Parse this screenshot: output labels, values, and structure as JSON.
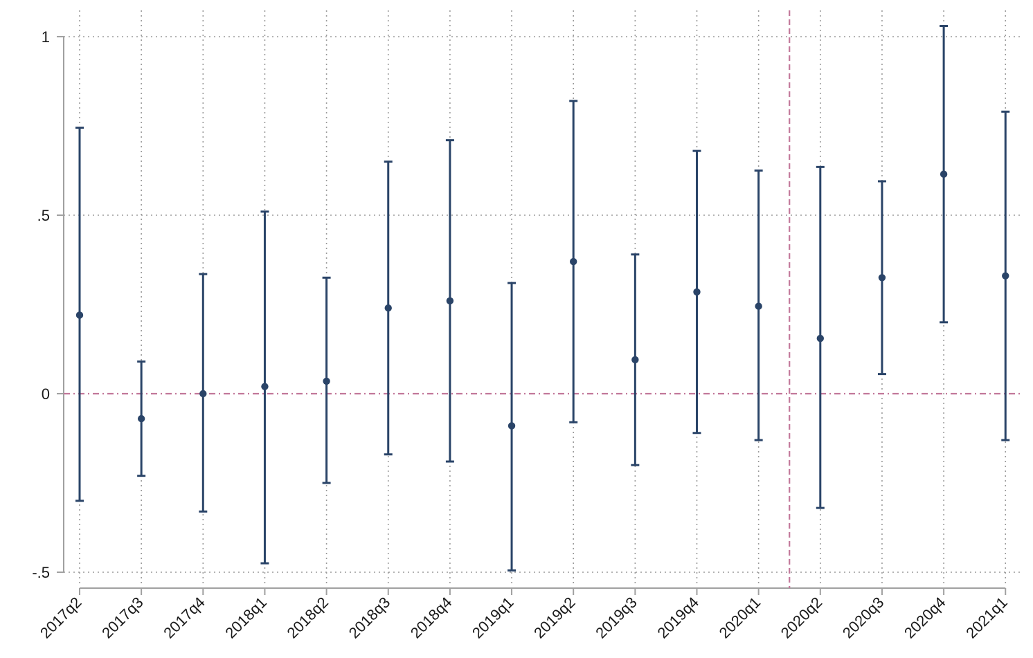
{
  "chart_data": {
    "type": "scatter",
    "title": "",
    "xlabel": "",
    "ylabel": "",
    "categories": [
      "2017q2",
      "2017q3",
      "2017q4",
      "2018q1",
      "2018q2",
      "2018q3",
      "2018q4",
      "2019q1",
      "2019q2",
      "2019q3",
      "2019q4",
      "2020q1",
      "2020q2",
      "2020q3",
      "2020q4",
      "2021q1"
    ],
    "series": [
      {
        "estimate": [
          0.22,
          -0.07,
          0.0,
          0.02,
          0.035,
          0.24,
          0.26,
          -0.09,
          0.37,
          0.095,
          0.285,
          0.245,
          0.155,
          0.325,
          0.615,
          0.33
        ],
        "ci_low": [
          -0.3,
          -0.23,
          -0.33,
          -0.475,
          -0.25,
          -0.17,
          -0.19,
          -0.495,
          -0.08,
          -0.2,
          -0.11,
          -0.13,
          -0.32,
          0.055,
          0.2,
          -0.13
        ],
        "ci_high": [
          0.745,
          0.09,
          0.335,
          0.51,
          0.325,
          0.65,
          0.71,
          0.31,
          0.82,
          0.39,
          0.68,
          0.625,
          0.635,
          0.595,
          1.03,
          0.79
        ]
      }
    ],
    "yticks": [
      {
        "value": -0.5,
        "label": "-.5"
      },
      {
        "value": 0,
        "label": "0"
      },
      {
        "value": 0.5,
        "label": ".5"
      },
      {
        "value": 1,
        "label": "1"
      }
    ],
    "ylim": [
      -0.53,
      1.07
    ],
    "reference_lines": {
      "horizontal_y": 0,
      "vertical_between": [
        "2020q1",
        "2020q2"
      ]
    },
    "grid": true,
    "colors": {
      "series": "#2a4468",
      "reference": "#c2779a",
      "grid": "#9a9a9a",
      "axis": "#a0a0a0"
    }
  }
}
